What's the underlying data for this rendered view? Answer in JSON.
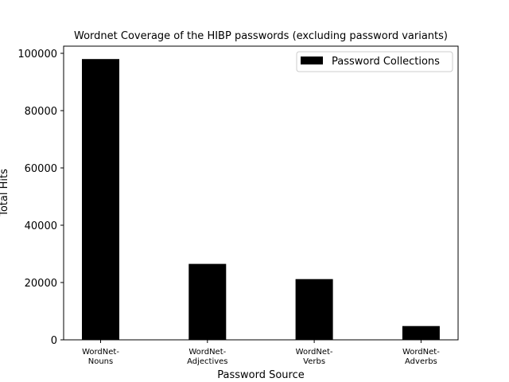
{
  "chart_data": {
    "type": "bar",
    "title": "Wordnet Coverage of the HIBP passwords (excluding password variants)",
    "xlabel": "Password Source",
    "ylabel": "Total Hits",
    "categories": [
      [
        "WordNet-",
        "Nouns"
      ],
      [
        "WordNet-",
        "Adjectives"
      ],
      [
        "WordNet-",
        "Verbs"
      ],
      [
        "WordNet-",
        "Adverbs"
      ]
    ],
    "series": [
      {
        "name": "Password Collections",
        "values": [
          98000,
          26500,
          21200,
          4800
        ],
        "color": "#000000"
      }
    ],
    "ylim": [
      0,
      102500
    ],
    "yticks": [
      0,
      20000,
      40000,
      60000,
      80000,
      100000
    ],
    "grid": false,
    "legend": "top-right"
  }
}
